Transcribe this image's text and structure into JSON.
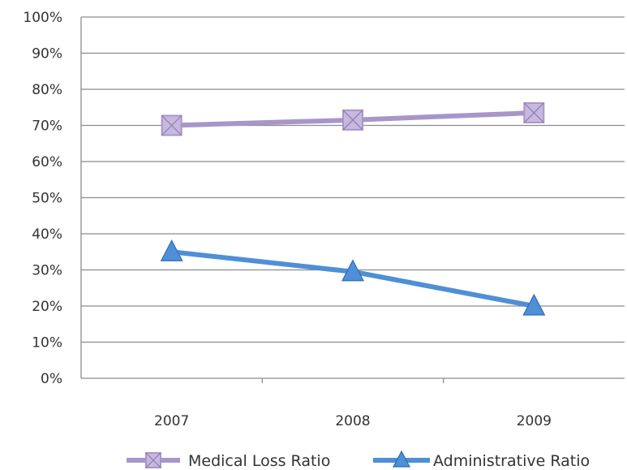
{
  "chart_data": {
    "type": "line",
    "categories": [
      "2007",
      "2008",
      "2009"
    ],
    "y_ticks": [
      "0%",
      "10%",
      "20%",
      "30%",
      "40%",
      "50%",
      "60%",
      "70%",
      "80%",
      "90%",
      "100%"
    ],
    "ylim": [
      0,
      100
    ],
    "grid": true,
    "legend_position": "bottom",
    "series": [
      {
        "name": "Medical Loss Ratio",
        "values": [
          70,
          71.5,
          73.5
        ],
        "color": "#a896c8",
        "marker": "square"
      },
      {
        "name": "Administrative Ratio",
        "values": [
          35,
          29.5,
          20
        ],
        "color": "#4f8fd6",
        "marker": "triangle"
      }
    ]
  }
}
